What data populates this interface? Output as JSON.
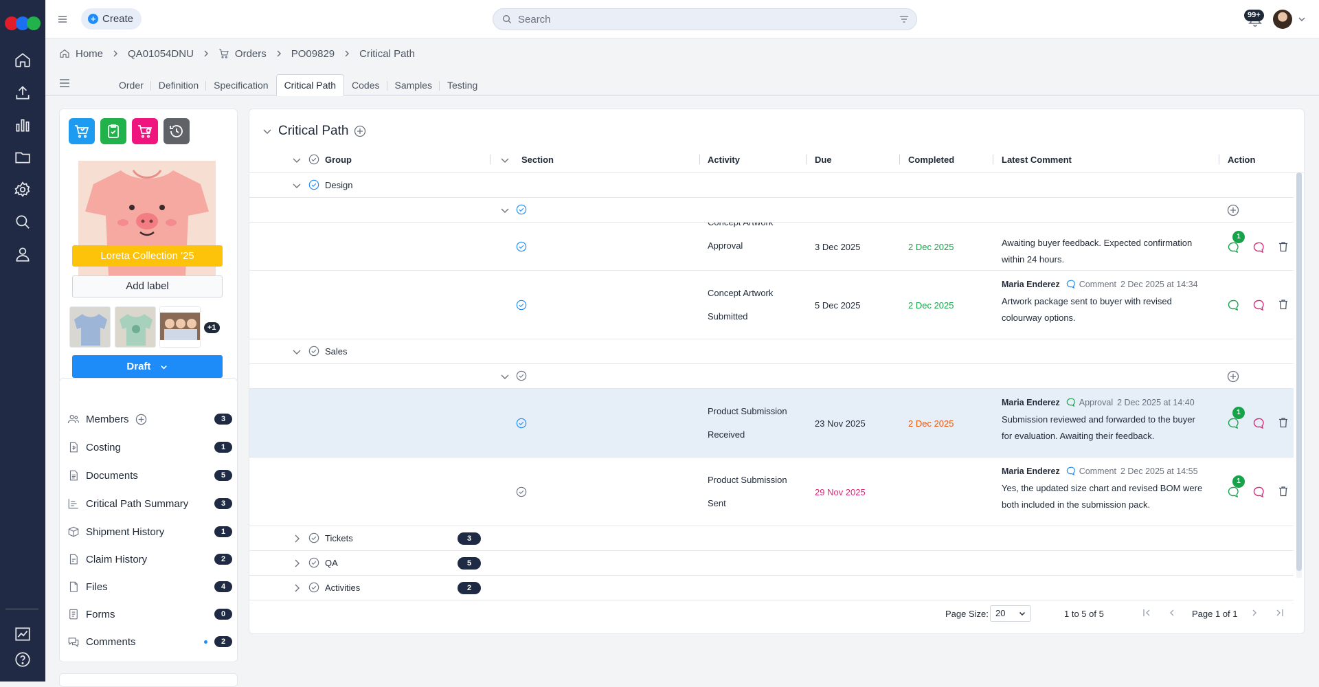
{
  "topbar": {
    "create_label": "Create",
    "search_placeholder": "Search",
    "notifications": "99+"
  },
  "breadcrumb": [
    "Home",
    "QA01054DNU",
    "Orders",
    "PO09829",
    "Critical Path"
  ],
  "tabs": [
    "Order",
    "Definition",
    "Specification",
    "Critical Path",
    "Codes",
    "Samples",
    "Testing"
  ],
  "product": {
    "collection_label": "Loreta Collection '25",
    "add_label": "Add label",
    "more_images": "+1",
    "status_button": "Draft"
  },
  "sidebar_items": [
    {
      "label": "Members",
      "count": "3"
    },
    {
      "label": "Costing",
      "count": "1"
    },
    {
      "label": "Documents",
      "count": "5"
    },
    {
      "label": "Critical Path Summary",
      "count": "3"
    },
    {
      "label": "Shipment History",
      "count": "1"
    },
    {
      "label": "Claim History",
      "count": "2"
    },
    {
      "label": "Files",
      "count": "4"
    },
    {
      "label": "Forms",
      "count": "0"
    },
    {
      "label": "Comments",
      "count": "2"
    }
  ],
  "main": {
    "title": "Critical Path",
    "columns": [
      "Group",
      "Section",
      "Activity",
      "Due",
      "Completed",
      "Latest Comment",
      "Action"
    ],
    "groups": {
      "design": "Design",
      "sales": "Sales",
      "tickets": {
        "label": "Tickets",
        "count": "3"
      },
      "qa": {
        "label": "QA",
        "count": "5"
      },
      "activities": {
        "label": "Activities",
        "count": "2"
      }
    },
    "rows": [
      {
        "activity_line1": "Concept Artwork",
        "activity_line2": "Approval",
        "due": "3 Dec 2025",
        "completed": "2 Dec 2025",
        "comment_author": "",
        "comment_type": "",
        "comment_time": "",
        "comment_text": "Awaiting buyer feedback. Expected confirmation within 24 hours.",
        "badge": "1"
      },
      {
        "activity_line1": "Concept Artwork",
        "activity_line2": "Submitted",
        "due": "5 Dec 2025",
        "completed": "2 Dec 2025",
        "comment_author": "Maria Enderez",
        "comment_type": "Comment",
        "comment_time": "2 Dec 2025 at 14:34",
        "comment_text": "Artwork package sent to buyer with revised colourway options.",
        "badge": ""
      },
      {
        "activity_line1": "Product Submission",
        "activity_line2": "Received",
        "due": "23 Nov 2025",
        "completed": "2 Dec 2025",
        "comment_author": "Maria Enderez",
        "comment_type": "Approval",
        "comment_time": "2 Dec 2025 at 14:40",
        "comment_text": "Submission reviewed and forwarded to the buyer for evaluation. Awaiting their feedback.",
        "badge": "1"
      },
      {
        "activity_line1": "Product Submission",
        "activity_line2": "Sent",
        "due": "29 Nov 2025",
        "completed": "",
        "comment_author": "Maria Enderez",
        "comment_type": "Comment",
        "comment_time": "2 Dec 2025 at 14:55",
        "comment_text": "Yes, the updated size chart and revised BOM were both included in the submission pack.",
        "badge": "1"
      }
    ]
  },
  "pager": {
    "page_size_label": "Page Size:",
    "page_size": "20",
    "range": "1 to 5 of 5",
    "page": "Page 1 of 1"
  },
  "colors": {
    "nav_bg": "#212a44",
    "accent": "#1d8cf8",
    "collection_label": "#fdc20a",
    "completed_green": "#16a34a",
    "completed_late": "#ea580c",
    "overdue": "#db2777"
  }
}
